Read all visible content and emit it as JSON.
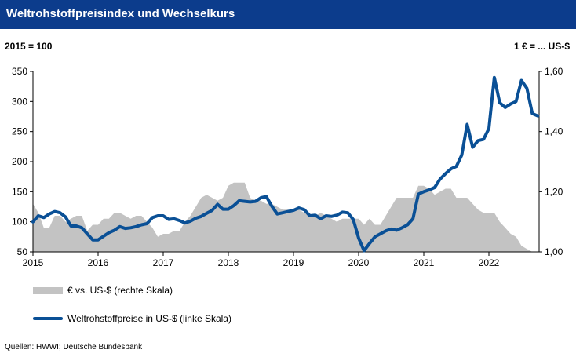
{
  "header": {
    "title": "Weltrohstoffpreisindex und Wechselkurs",
    "unit_left": "2015 = 100",
    "unit_right": "1 € = ... US-$"
  },
  "colors": {
    "title_bar": "#0c3c8c",
    "line": "#0a5096",
    "area": "#c3c3c3"
  },
  "chart_data": {
    "type": "line",
    "x_start": "2015-01",
    "x_ticks": [
      "2015",
      "2016",
      "2017",
      "2018",
      "2019",
      "2020",
      "2021",
      "2022"
    ],
    "y_left": {
      "ticks": [
        "50",
        "100",
        "150",
        "200",
        "250",
        "300",
        "350"
      ],
      "ylim": [
        50,
        350
      ]
    },
    "y_right": {
      "ticks": [
        "1,00",
        "1,20",
        "1,40",
        "1,60"
      ],
      "ylim": [
        1.0,
        1.6
      ]
    },
    "grid": false,
    "legend_position": "bottom-left",
    "series": [
      {
        "name": "€ vs. US-$ (rechte Skala)",
        "type": "area",
        "axis": "right",
        "values": [
          1.16,
          1.13,
          1.08,
          1.08,
          1.12,
          1.12,
          1.1,
          1.11,
          1.12,
          1.12,
          1.07,
          1.09,
          1.09,
          1.11,
          1.11,
          1.13,
          1.13,
          1.12,
          1.11,
          1.12,
          1.12,
          1.1,
          1.08,
          1.05,
          1.06,
          1.06,
          1.07,
          1.07,
          1.1,
          1.12,
          1.15,
          1.18,
          1.19,
          1.18,
          1.17,
          1.18,
          1.22,
          1.23,
          1.23,
          1.23,
          1.18,
          1.17,
          1.17,
          1.16,
          1.16,
          1.15,
          1.14,
          1.14,
          1.14,
          1.14,
          1.13,
          1.12,
          1.12,
          1.13,
          1.12,
          1.11,
          1.1,
          1.11,
          1.11,
          1.11,
          1.11,
          1.09,
          1.11,
          1.09,
          1.09,
          1.12,
          1.15,
          1.18,
          1.18,
          1.18,
          1.18,
          1.22,
          1.22,
          1.21,
          1.19,
          1.2,
          1.21,
          1.21,
          1.18,
          1.18,
          1.18,
          1.16,
          1.14,
          1.13,
          1.13,
          1.13,
          1.1,
          1.08,
          1.06,
          1.05,
          1.02,
          1.01,
          1.0
        ]
      },
      {
        "name": "Weltrohstoffpreise in US-$ (linke Skala)",
        "type": "line",
        "axis": "left",
        "values": [
          100,
          110,
          107,
          113,
          117,
          115,
          108,
          93,
          93,
          90,
          80,
          70,
          70,
          76,
          82,
          86,
          92,
          89,
          90,
          92,
          95,
          97,
          107,
          110,
          110,
          104,
          105,
          102,
          98,
          101,
          106,
          109,
          114,
          119,
          129,
          121,
          121,
          127,
          135,
          134,
          133,
          134,
          140,
          142,
          126,
          113,
          115,
          117,
          119,
          123,
          120,
          110,
          111,
          105,
          110,
          109,
          111,
          116,
          115,
          104,
          73,
          52,
          64,
          75,
          80,
          85,
          88,
          86,
          90,
          95,
          105,
          146,
          150,
          153,
          157,
          171,
          180,
          188,
          192,
          211,
          262,
          224,
          235,
          237,
          255,
          340,
          298,
          290,
          296,
          300,
          335,
          322,
          280,
          276
        ]
      }
    ]
  },
  "legend": {
    "area_label": "€ vs. US-$ (rechte Skala)",
    "line_label": "Weltrohstoffpreise in US-$ (linke Skala)"
  },
  "source": "Quellen: HWWI; Deutsche Bundesbank"
}
